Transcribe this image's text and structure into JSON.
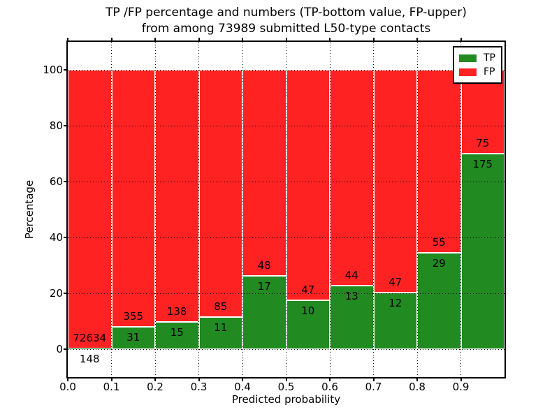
{
  "figure": {
    "title_line1": "TP /FP percentage and numbers (TP-bottom value, FP-upper)",
    "title_line2": "from among 73989 submitted L50-type contacts"
  },
  "chart_data": {
    "type": "bar",
    "variant": "stacked-percentage",
    "title": "TP /FP percentage and numbers (TP-bottom value, FP-upper)\nfrom among 73989 submitted L50-type contacts",
    "xlabel": "Predicted probability",
    "ylabel": "Percentage",
    "xlim": [
      0.0,
      1.0
    ],
    "ylim": [
      -10,
      110
    ],
    "bin_edges": [
      0.0,
      0.1,
      0.2,
      0.3,
      0.4,
      0.5,
      0.6,
      0.7,
      0.8,
      0.9,
      1.0
    ],
    "x_tick_values": [
      0.0,
      0.1,
      0.2,
      0.3,
      0.4,
      0.5,
      0.6,
      0.7,
      0.8,
      0.9
    ],
    "x_tick_labels": [
      "0.0",
      "0.1",
      "0.2",
      "0.3",
      "0.4",
      "0.5",
      "0.6",
      "0.7",
      "0.8",
      "0.9"
    ],
    "y_tick_values": [
      0,
      20,
      40,
      60,
      80,
      100
    ],
    "y_tick_labels": [
      "0",
      "20",
      "40",
      "60",
      "80",
      "100"
    ],
    "grid": {
      "enabled": true,
      "style": "dotted",
      "color": "#000000"
    },
    "bar_edge_color": "#ffffff",
    "series": [
      {
        "name": "TP",
        "color": "#218a21",
        "counts": [
          148,
          31,
          15,
          11,
          17,
          10,
          13,
          12,
          29,
          175
        ]
      },
      {
        "name": "FP",
        "color": "#fe2222",
        "counts": [
          72634,
          355,
          138,
          85,
          48,
          47,
          44,
          47,
          55,
          75
        ]
      }
    ],
    "tp_percentages": [
      0.2,
      8.0,
      9.8,
      11.5,
      26.2,
      17.5,
      22.8,
      20.3,
      34.5,
      70.0
    ],
    "legend": {
      "position": "upper right",
      "entries": [
        {
          "label": "TP",
          "color": "#218a21"
        },
        {
          "label": "FP",
          "color": "#fe2222"
        }
      ]
    }
  }
}
